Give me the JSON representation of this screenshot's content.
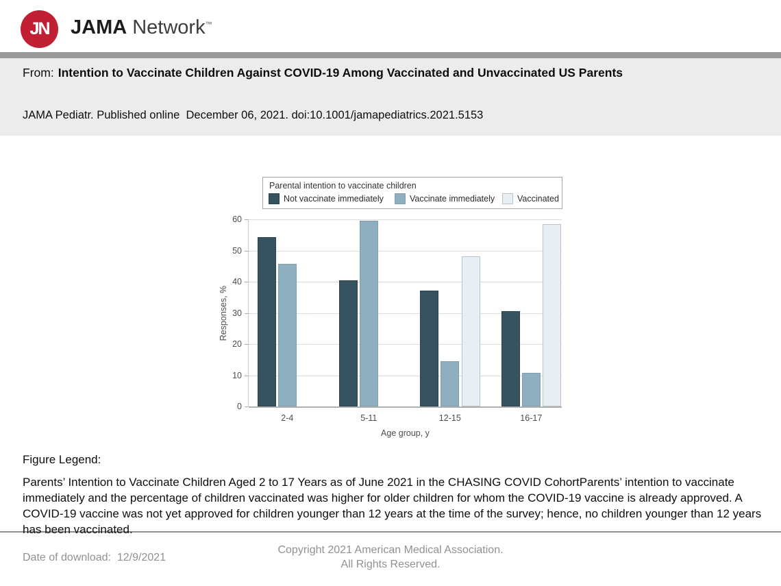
{
  "header": {
    "logo": {
      "monogram": "JN",
      "brand_bold": "JAMA",
      "brand_regular": "Network",
      "trademark": "™",
      "circle_color": "#c11f33"
    },
    "from_prefix": "From:",
    "article_title": "Intention to Vaccinate Children Against COVID-19 Among Vaccinated and Unvaccinated US Parents",
    "citation": "JAMA Pediatr. Published online  December 06, 2021. doi:10.1001/jamapediatrics.2021.5153"
  },
  "chart_data": {
    "type": "bar",
    "title": "Parental intention to vaccinate children",
    "categories": [
      "2-4",
      "5-11",
      "12-15",
      "16-17"
    ],
    "series": [
      {
        "name": "Not vaccinate immediately",
        "color": "#36535f",
        "border_color": "#2a424d",
        "values": [
          54.3,
          40.5,
          37.2,
          30.6
        ]
      },
      {
        "name": "Vaccinate immediately",
        "color": "#8fafc0",
        "border_color": "#7d9fb0",
        "values": [
          45.8,
          59.6,
          14.5,
          10.8
        ]
      },
      {
        "name": "Vaccinated",
        "color": "#e8eff4",
        "border_color": "#bac3c9",
        "values": [
          0,
          0,
          48.2,
          58.4
        ]
      }
    ],
    "xlabel": "Age group, y",
    "ylabel": "Responses, %",
    "ylim": [
      0,
      60
    ],
    "yticks": [
      0,
      10,
      20,
      30,
      40,
      50,
      60
    ],
    "grid": true,
    "legend_position": "top"
  },
  "figure_legend": {
    "heading": "Figure Legend:",
    "text": "Parents’ Intention to Vaccinate Children Aged 2 to 17 Years as of June 2021 in the CHASING COVID CohortParents’ intention to vaccinate immediately and the percentage of children vaccinated was higher for older children for whom the COVID-19 vaccine is already approved. A COVID-19 vaccine was not yet approved for children younger than 12 years at the time of the survey; hence, no children younger than 12 years has been vaccinated."
  },
  "footer": {
    "download_label": "Date of download:",
    "download_date": "12/9/2021",
    "copyright_line1": "Copyright 2021 American Medical Association.",
    "copyright_line2": "All Rights Reserved."
  }
}
